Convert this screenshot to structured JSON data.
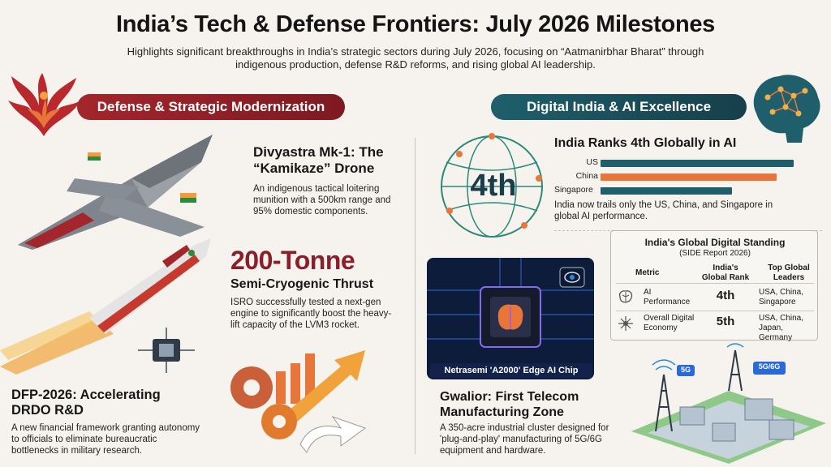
{
  "header": {
    "title": "India’s Tech & Defense Frontiers: July 2026 Milestones",
    "subtitle": "Highlights significant breakthroughs in India’s strategic sectors during July 2026, focusing on “Aatmanirbhar Bharat” through indigenous production, defense R&D reforms, and rising global AI leadership."
  },
  "sections": {
    "defense": {
      "banner": "Defense & Strategic Modernization",
      "drone": {
        "title_line1": "Divyastra Mk-1: The",
        "title_line2": "“Kamikaze” Drone",
        "body": "An indigenous tactical loitering munition with a 500km range and 95% domestic components."
      },
      "engine": {
        "big": "200-Tonne",
        "title": "Semi-Cryogenic Thrust",
        "body": "ISRO successfully tested a next-gen engine to significantly boost the heavy-lift capacity of the LVM3 rocket."
      },
      "dfp": {
        "title_line1": "DFP-2026: Accelerating",
        "title_line2": "DRDO R&D",
        "body": "A new financial framework granting autonomy to officials to eliminate bureaucratic bottlenecks in military research."
      }
    },
    "digital": {
      "banner": "Digital India & AI Excellence",
      "rank_badge": "4th",
      "ai_rank": {
        "title": "India Ranks 4th Globally in AI",
        "body": "India now trails only the US, China, and Singapore in global AI performance."
      },
      "chip": {
        "caption": "Netrasemi 'A2000' Edge AI Chip"
      },
      "telecom": {
        "title_line1": "Gwalior: First Telecom",
        "title_line2": "Manufacturing Zone",
        "body": "A 350-acre industrial cluster designed for 'plug-and-play' manufacturing of 5G/6G equipment and hardware.",
        "tower_label_1": "5G",
        "tower_label_2": "5G/6G"
      },
      "table": {
        "title": "India's Global Digital Standing",
        "source": "(SIDE Report 2026)",
        "headers": [
          "Metric",
          "India's Global Rank",
          "Top Global Leaders"
        ],
        "rows": [
          {
            "metric": "AI Performance",
            "rank": "4th",
            "leaders": "USA, China, Singapore",
            "icon": "brain-icon"
          },
          {
            "metric": "Overall Digital Economy",
            "rank": "5th",
            "leaders": "USA, China, Japan, Germany",
            "icon": "network-icon"
          }
        ]
      }
    }
  },
  "chart_data": {
    "type": "bar",
    "categories": [
      "US",
      "China",
      "Singapore"
    ],
    "values": [
      100,
      91,
      68
    ],
    "colors": [
      "#1f5f6c",
      "#e8763a",
      "#1f5f6c"
    ],
    "title": "",
    "xlabel": "",
    "ylabel": "",
    "xlim": [
      0,
      100
    ],
    "grid": false,
    "orientation": "horizontal"
  },
  "colors": {
    "defense_accent": "#a3262c",
    "digital_accent": "#1f5f6c",
    "orange": "#e8763a"
  }
}
